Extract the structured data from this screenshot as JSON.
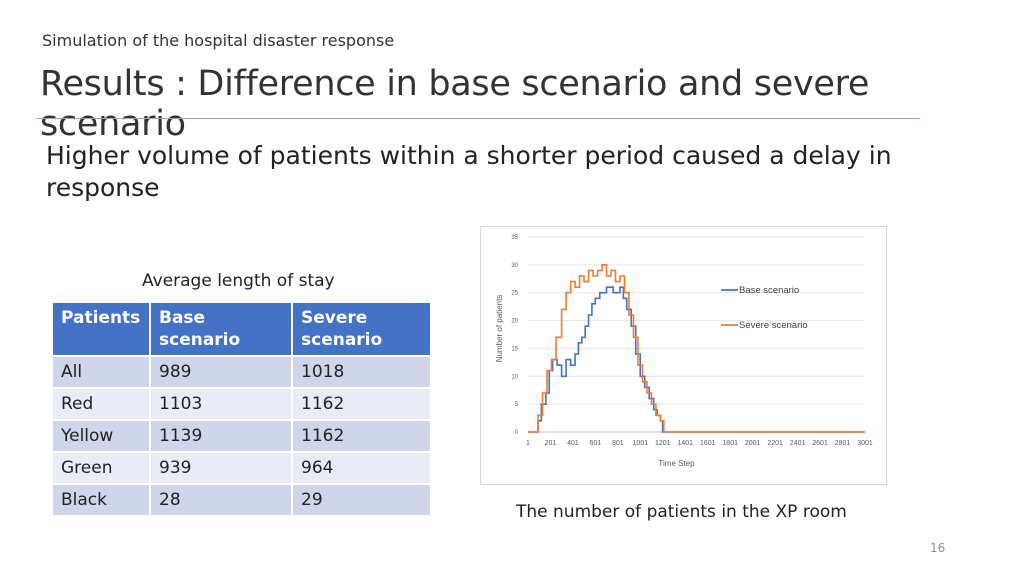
{
  "header": {
    "supertitle": "Simulation of the hospital disaster response",
    "title": "Results : Difference in base scenario and severe scenario",
    "subtitle": "Higher volume of patients within a shorter period caused a delay in response"
  },
  "table": {
    "caption": "Average length of stay",
    "headers": [
      "Patients",
      "Base scenario",
      "Severe scenario"
    ],
    "rows": [
      {
        "label": "All",
        "base": "989",
        "severe": "1018"
      },
      {
        "label": "Red",
        "base": "1103",
        "severe": "1162"
      },
      {
        "label": "Yellow",
        "base": "1139",
        "severe": "1162"
      },
      {
        "label": "Green",
        "base": "939",
        "severe": "964"
      },
      {
        "label": "Black",
        "base": "28",
        "severe": "29"
      }
    ]
  },
  "chart_data": {
    "type": "line",
    "title": "",
    "xlabel": "Time Step",
    "ylabel": "Number of patients",
    "xlim": [
      1,
      3001
    ],
    "ylim": [
      0,
      35
    ],
    "x_ticks": [
      "1",
      "201",
      "401",
      "601",
      "801",
      "1001",
      "1201",
      "1401",
      "1601",
      "1801",
      "2001",
      "2201",
      "2401",
      "2601",
      "2801",
      "3001"
    ],
    "y_ticks": [
      "0",
      "5",
      "10",
      "15",
      "20",
      "25",
      "30",
      "35"
    ],
    "legend_position": "right",
    "grid": true,
    "series": [
      {
        "name": "Base scenario",
        "color": "#4472c4",
        "points": [
          [
            1,
            0
          ],
          [
            60,
            0
          ],
          [
            90,
            2
          ],
          [
            120,
            5
          ],
          [
            160,
            7
          ],
          [
            190,
            11
          ],
          [
            220,
            13
          ],
          [
            260,
            12
          ],
          [
            300,
            10
          ],
          [
            340,
            13
          ],
          [
            380,
            12
          ],
          [
            420,
            14
          ],
          [
            450,
            16
          ],
          [
            480,
            17
          ],
          [
            510,
            19
          ],
          [
            540,
            21
          ],
          [
            570,
            23
          ],
          [
            600,
            24
          ],
          [
            640,
            25
          ],
          [
            700,
            26
          ],
          [
            760,
            25
          ],
          [
            820,
            26
          ],
          [
            850,
            24
          ],
          [
            880,
            22
          ],
          [
            920,
            19
          ],
          [
            960,
            14
          ],
          [
            1000,
            10
          ],
          [
            1040,
            8
          ],
          [
            1080,
            6
          ],
          [
            1120,
            4
          ],
          [
            1150,
            3
          ],
          [
            1180,
            2
          ],
          [
            1200,
            0
          ],
          [
            3001,
            0
          ]
        ]
      },
      {
        "name": "Severe scenario",
        "color": "#ed7d31",
        "points": [
          [
            1,
            0
          ],
          [
            60,
            0
          ],
          [
            90,
            3
          ],
          [
            130,
            7
          ],
          [
            170,
            11
          ],
          [
            210,
            13
          ],
          [
            250,
            17
          ],
          [
            300,
            22
          ],
          [
            340,
            25
          ],
          [
            380,
            27
          ],
          [
            420,
            26
          ],
          [
            460,
            28
          ],
          [
            500,
            27
          ],
          [
            540,
            29
          ],
          [
            580,
            28
          ],
          [
            620,
            29
          ],
          [
            660,
            30
          ],
          [
            700,
            28
          ],
          [
            740,
            29
          ],
          [
            780,
            27
          ],
          [
            820,
            28
          ],
          [
            860,
            25
          ],
          [
            900,
            21
          ],
          [
            940,
            17
          ],
          [
            980,
            12
          ],
          [
            1020,
            9
          ],
          [
            1060,
            7
          ],
          [
            1100,
            5
          ],
          [
            1140,
            3
          ],
          [
            1180,
            2
          ],
          [
            1210,
            0
          ],
          [
            3001,
            0
          ]
        ]
      }
    ],
    "caption": "The number of patients in the XP room"
  },
  "footer": {
    "page_number": "16"
  }
}
